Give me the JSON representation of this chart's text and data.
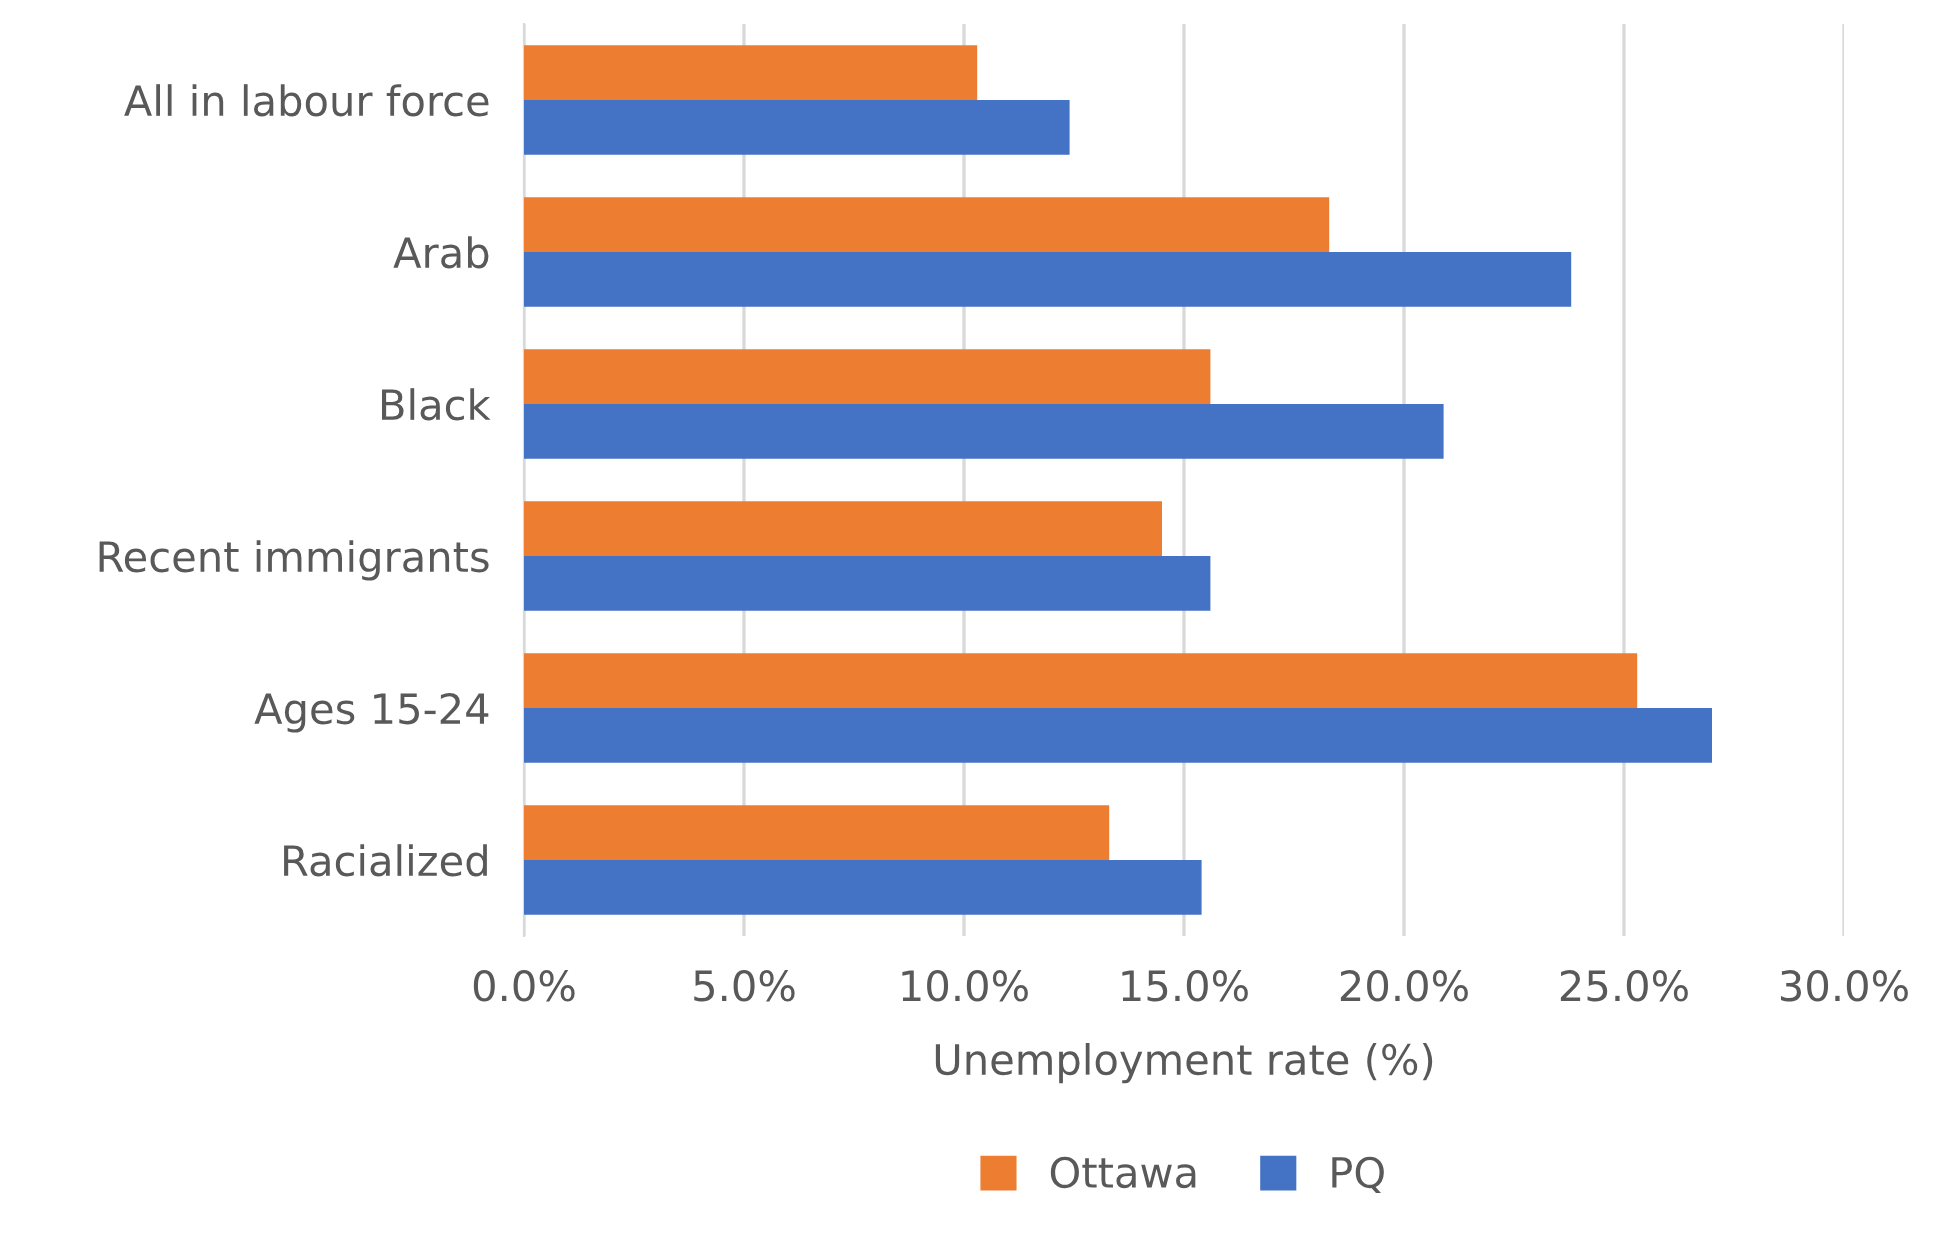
{
  "chart_data": {
    "type": "bar",
    "orientation": "horizontal",
    "xlabel": "Unemployment rate (%)",
    "categories": [
      "All in labour force",
      "Arab",
      "Black",
      "Recent immigrants",
      "Ages 15-24",
      "Racialized"
    ],
    "series": [
      {
        "name": "Ottawa",
        "color": "#ed7d31",
        "values": [
          10.3,
          18.3,
          15.6,
          14.5,
          25.3,
          13.3
        ]
      },
      {
        "name": "PQ",
        "color": "#4472c4",
        "values": [
          12.4,
          23.8,
          20.9,
          15.6,
          27.0,
          15.4
        ]
      }
    ],
    "xlim": [
      0,
      30
    ],
    "xticks": [
      {
        "value": 0,
        "label": "0.0%"
      },
      {
        "value": 5,
        "label": "5.0%"
      },
      {
        "value": 10,
        "label": "10.0%"
      },
      {
        "value": 15,
        "label": "15.0%"
      },
      {
        "value": 20,
        "label": "20.0%"
      },
      {
        "value": 25,
        "label": "25.0%"
      },
      {
        "value": 30,
        "label": "30.0%"
      }
    ],
    "grid": "x",
    "legend": "bottom"
  }
}
